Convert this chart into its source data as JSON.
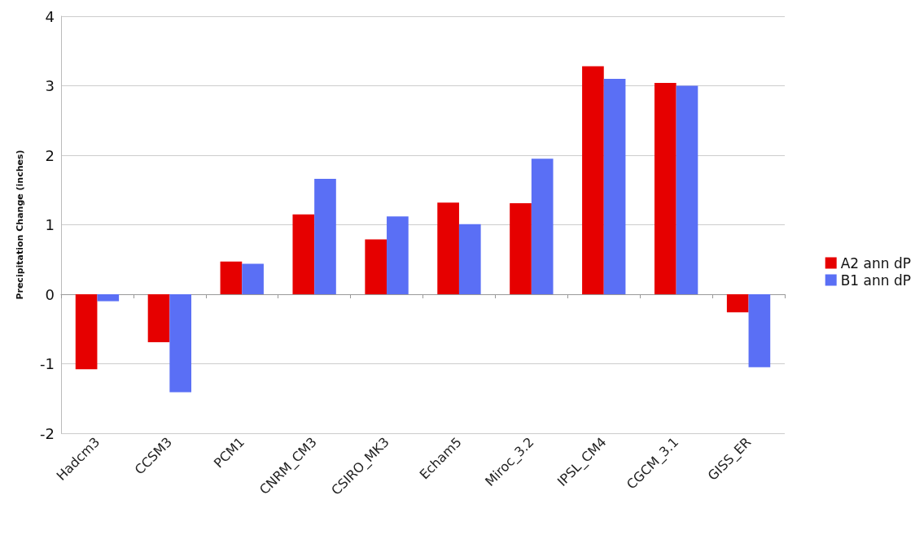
{
  "chart_data": {
    "type": "bar",
    "ylabel": "Precipitation Change (inches)",
    "categories": [
      "Hadcm3",
      "CCSM3",
      "PCM1",
      "CNRM_CM3",
      "CSIRO_MK3",
      "Echam5",
      "Miroc_3.2",
      "IPSL_CM4",
      "CGCM_3.1",
      "GISS_ER"
    ],
    "series": [
      {
        "name": "A2 ann dP",
        "color": "#e60000",
        "values": [
          -1.08,
          -0.69,
          0.47,
          1.15,
          0.79,
          1.32,
          1.31,
          3.28,
          3.04,
          -0.26
        ]
      },
      {
        "name": "B1 ann dP",
        "color": "#5a6ff5",
        "values": [
          -0.1,
          -1.41,
          0.44,
          1.66,
          1.12,
          1.01,
          1.95,
          3.1,
          3.0,
          -1.05
        ]
      }
    ],
    "ylim": [
      -2,
      4
    ],
    "yticks": [
      -2,
      -1,
      0,
      1,
      2,
      3,
      4
    ],
    "grid": "y",
    "legend": "right"
  }
}
